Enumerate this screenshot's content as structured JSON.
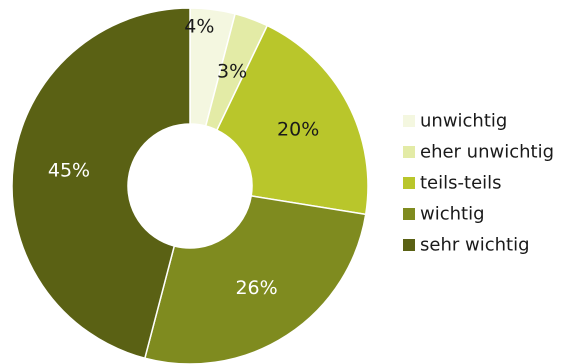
{
  "chart_data": {
    "type": "pie",
    "donut": true,
    "start_angle_deg": 0,
    "direction": "clockwise",
    "legend_position": "right",
    "categories": [
      "unwichtig",
      "eher unwichtig",
      "teils-teils",
      "wichtig",
      "sehr wichtig"
    ],
    "values": [
      4,
      3,
      20,
      26,
      45
    ],
    "data_labels": [
      "4%",
      "3%",
      "20%",
      "26%",
      "45%"
    ],
    "colors": [
      "#f4f7e0",
      "#e3eba6",
      "#b9c62b",
      "#7f8b1f",
      "#5a6114"
    ],
    "label_colors": [
      "#1a1a1a",
      "#1a1a1a",
      "#1a1a1a",
      "#ffffff",
      "#ffffff"
    ]
  }
}
